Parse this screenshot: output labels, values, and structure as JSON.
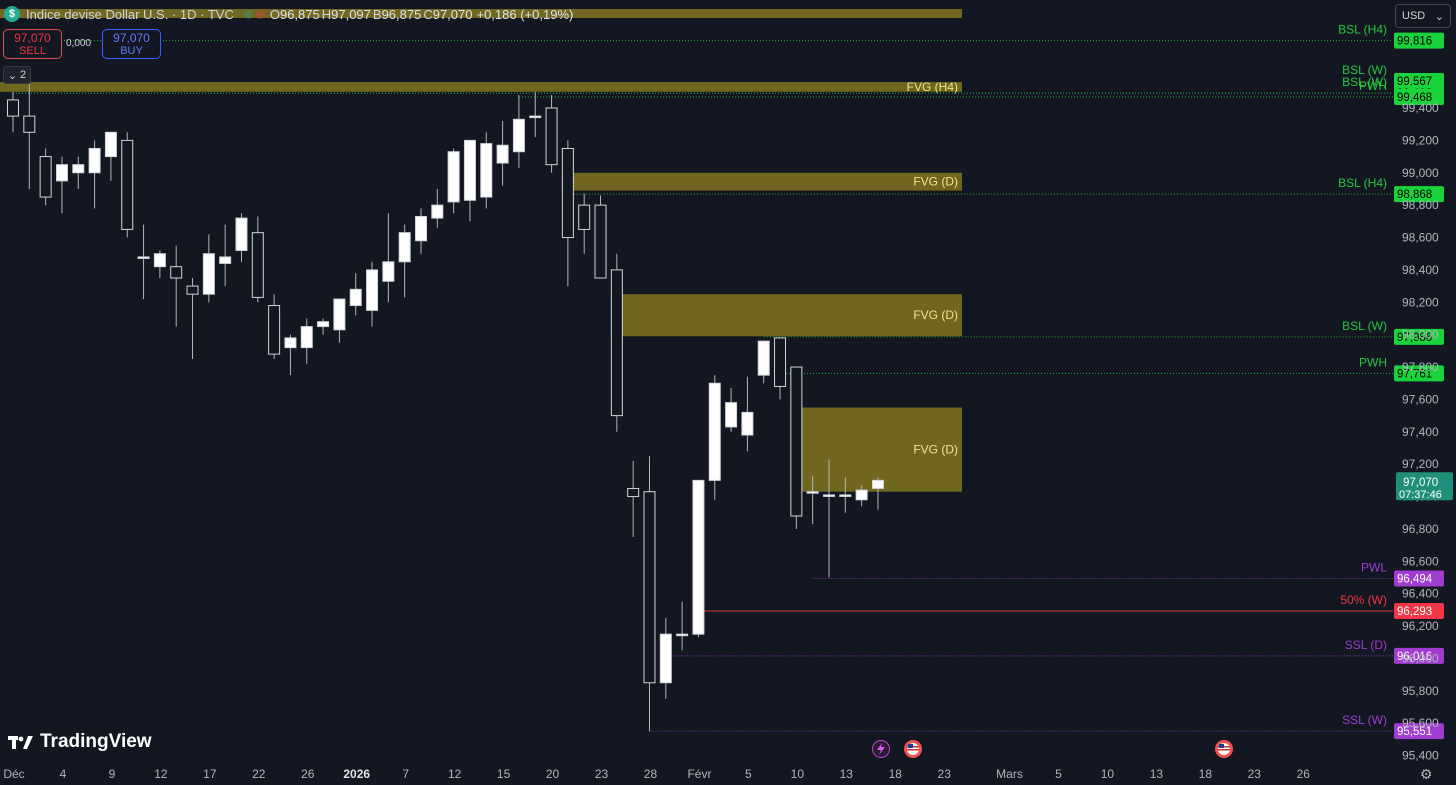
{
  "header": {
    "symbol": "Indice devise Dollar U.S. · 1D · TVC",
    "open_label": "O",
    "open": "96,875",
    "high_label": "H",
    "high": "97,097",
    "low_label": "B",
    "low": "96,875",
    "close_label": "C",
    "close": "97,070",
    "change": "+0,186 (+0,19%)"
  },
  "trade": {
    "sell_price": "97,070",
    "sell_label": "SELL",
    "spread": "0,000",
    "buy_price": "97,070",
    "buy_label": "BUY"
  },
  "collapse_label": "2",
  "currency": {
    "selected": "USD"
  },
  "branding": "TradingView",
  "colors": {
    "background": "#131722",
    "up_candle": "#ffffff",
    "down_candle": "#131722",
    "wick": "#b2b5be",
    "fvg": "#8a7c20",
    "bsl": "#25c93c",
    "pw": "#a03ccf",
    "fifty": "#f23645",
    "last": "#1f8f7b"
  },
  "chart_data": {
    "type": "candlestick",
    "title": "Indice devise Dollar U.S. · 1D · TVC",
    "y_ticks": [
      "99,400",
      "99,200",
      "99,000",
      "98,800",
      "98,600",
      "98,400",
      "98,200",
      "98,000",
      "97,800",
      "97,600",
      "97,400",
      "97,200",
      "97,000",
      "96,800",
      "96,600",
      "96,400",
      "96,200",
      "96,000",
      "95,800",
      "95,600",
      "95,400"
    ],
    "x_ticks": [
      {
        "label": "Déc",
        "bar": 0
      },
      {
        "label": "4",
        "bar": 3
      },
      {
        "label": "9",
        "bar": 6
      },
      {
        "label": "12",
        "bar": 9
      },
      {
        "label": "17",
        "bar": 12
      },
      {
        "label": "22",
        "bar": 15
      },
      {
        "label": "26",
        "bar": 18
      },
      {
        "label": "2026",
        "bar": 21
      },
      {
        "label": "7",
        "bar": 24
      },
      {
        "label": "12",
        "bar": 27
      },
      {
        "label": "15",
        "bar": 30
      },
      {
        "label": "20",
        "bar": 33
      },
      {
        "label": "23",
        "bar": 36
      },
      {
        "label": "28",
        "bar": 39
      },
      {
        "label": "Févr",
        "bar": 42
      },
      {
        "label": "5",
        "bar": 45
      },
      {
        "label": "10",
        "bar": 48
      },
      {
        "label": "13",
        "bar": 51
      },
      {
        "label": "18",
        "bar": 54
      },
      {
        "label": "23",
        "bar": 57
      },
      {
        "label": "Mars",
        "bar": 61
      },
      {
        "label": "5",
        "bar": 64
      },
      {
        "label": "10",
        "bar": 67
      },
      {
        "label": "13",
        "bar": 70
      },
      {
        "label": "18",
        "bar": 73
      },
      {
        "label": "23",
        "bar": 76
      },
      {
        "label": "26",
        "bar": 79
      }
    ],
    "ohlc": [
      [
        99.45,
        99.5,
        99.25,
        99.35
      ],
      [
        99.35,
        99.55,
        98.9,
        99.25
      ],
      [
        99.1,
        99.15,
        98.8,
        98.85
      ],
      [
        98.95,
        99.1,
        98.75,
        99.05
      ],
      [
        99.0,
        99.1,
        98.9,
        99.05
      ],
      [
        99.0,
        99.2,
        98.78,
        99.15
      ],
      [
        99.1,
        99.25,
        98.95,
        99.25
      ],
      [
        99.2,
        99.25,
        98.6,
        98.65
      ],
      [
        98.48,
        98.68,
        98.22,
        98.48
      ],
      [
        98.42,
        98.52,
        98.35,
        98.5
      ],
      [
        98.42,
        98.55,
        98.05,
        98.35
      ],
      [
        98.3,
        98.35,
        97.85,
        98.25
      ],
      [
        98.25,
        98.62,
        98.2,
        98.5
      ],
      [
        98.44,
        98.68,
        98.3,
        98.48
      ],
      [
        98.52,
        98.75,
        98.45,
        98.72
      ],
      [
        98.63,
        98.73,
        98.2,
        98.23
      ],
      [
        98.18,
        98.25,
        97.85,
        97.88
      ],
      [
        97.92,
        98.0,
        97.75,
        97.98
      ],
      [
        97.92,
        98.1,
        97.82,
        98.05
      ],
      [
        98.05,
        98.1,
        98.0,
        98.08
      ],
      [
        98.03,
        98.22,
        97.95,
        98.22
      ],
      [
        98.18,
        98.38,
        98.12,
        98.28
      ],
      [
        98.15,
        98.45,
        98.05,
        98.4
      ],
      [
        98.33,
        98.75,
        98.2,
        98.45
      ],
      [
        98.45,
        98.68,
        98.23,
        98.63
      ],
      [
        98.58,
        98.78,
        98.5,
        98.73
      ],
      [
        98.72,
        98.9,
        98.66,
        98.8
      ],
      [
        98.82,
        99.15,
        98.75,
        99.13
      ],
      [
        98.83,
        99.18,
        98.7,
        99.2
      ],
      [
        98.85,
        99.25,
        98.78,
        99.18
      ],
      [
        99.06,
        99.32,
        98.92,
        99.17
      ],
      [
        99.13,
        99.48,
        99.03,
        99.33
      ],
      [
        99.35,
        99.5,
        99.22,
        99.35
      ],
      [
        99.4,
        99.48,
        99.0,
        99.05
      ],
      [
        99.15,
        99.2,
        98.3,
        98.6
      ],
      [
        98.8,
        98.87,
        98.5,
        98.65
      ],
      [
        98.8,
        98.86,
        98.35,
        98.35
      ],
      [
        98.4,
        98.5,
        97.4,
        97.5
      ],
      [
        97.05,
        97.22,
        96.75,
        97.0
      ],
      [
        97.03,
        97.25,
        95.55,
        95.85
      ],
      [
        95.85,
        96.25,
        95.75,
        96.15
      ],
      [
        96.15,
        96.35,
        96.05,
        96.15
      ],
      [
        96.15,
        97.1,
        96.13,
        97.1
      ],
      [
        97.1,
        97.75,
        96.98,
        97.7
      ],
      [
        97.43,
        97.67,
        97.4,
        97.58
      ],
      [
        97.38,
        97.74,
        97.28,
        97.52
      ],
      [
        97.75,
        97.92,
        97.7,
        97.96
      ],
      [
        97.98,
        97.98,
        97.6,
        97.68
      ],
      [
        97.8,
        97.8,
        96.8,
        96.88
      ],
      [
        97.03,
        97.13,
        96.83,
        97.03
      ],
      [
        97.01,
        97.23,
        96.5,
        97.01
      ],
      [
        97.01,
        97.12,
        96.9,
        97.01
      ],
      [
        96.98,
        97.07,
        96.94,
        97.04
      ],
      [
        97.05,
        97.12,
        96.92,
        97.1
      ]
    ],
    "fvg_zones": [
      {
        "label": "FVG (H4)",
        "top": 99.56,
        "bottom": 99.5,
        "from_bar": 0
      },
      {
        "label": "FVG (D)",
        "top": 99.0,
        "bottom": 98.89,
        "from_bar": 34
      },
      {
        "label": "FVG (D)",
        "top": 98.25,
        "bottom": 97.99,
        "from_bar": 37
      },
      {
        "label": "FVG (D)",
        "top": 97.55,
        "bottom": 97.03,
        "from_bar": 48
      }
    ],
    "levels": [
      {
        "label": "BSL (H4)",
        "value": "99,816",
        "y": 99.816,
        "color": "#25c93c",
        "from_bar": 0,
        "style": "dot"
      },
      {
        "label": "BSL (W)",
        "value": "99,567",
        "y": 99.567,
        "color": "#25c93c",
        "from_bar": 0,
        "style": "none"
      },
      {
        "label": "BSL (W)",
        "value": "99,492",
        "y": 99.492,
        "color": "#25c93c",
        "from_bar": 0,
        "style": "dot"
      },
      {
        "label": "PWH",
        "value": "99,468",
        "y": 99.468,
        "color": "#25c93c",
        "from_bar": 31,
        "style": "dot"
      },
      {
        "label": "BSL (H4)",
        "value": "98,868",
        "y": 98.868,
        "color": "#25c93c",
        "from_bar": 34,
        "style": "dot"
      },
      {
        "label": "BSL (W)",
        "value": "97,986",
        "y": 97.986,
        "color": "#25c93c",
        "from_bar": 46,
        "style": "dot"
      },
      {
        "label": "PWH",
        "value": "97,761",
        "y": 97.761,
        "color": "#25c93c",
        "from_bar": 47,
        "style": "dot"
      },
      {
        "label": "PWL",
        "value": "96,494",
        "y": 96.494,
        "color": "#a03ccf",
        "from_bar": 49,
        "style": "dot"
      },
      {
        "label": "50% (W)",
        "value": "96,293",
        "y": 96.293,
        "color": "#f23645",
        "from_bar": 42,
        "style": "solid"
      },
      {
        "label": "SSL (D)",
        "value": "96,016",
        "y": 96.016,
        "color": "#a03ccf",
        "from_bar": 40,
        "style": "dot"
      },
      {
        "label": "SSL (W)",
        "value": "95,551",
        "y": 95.551,
        "color": "#a03ccf",
        "from_bar": 39,
        "style": "dot"
      }
    ],
    "last_price": {
      "value": "97,070",
      "y": 97.07,
      "countdown": "07:37:46"
    },
    "grid": false
  }
}
